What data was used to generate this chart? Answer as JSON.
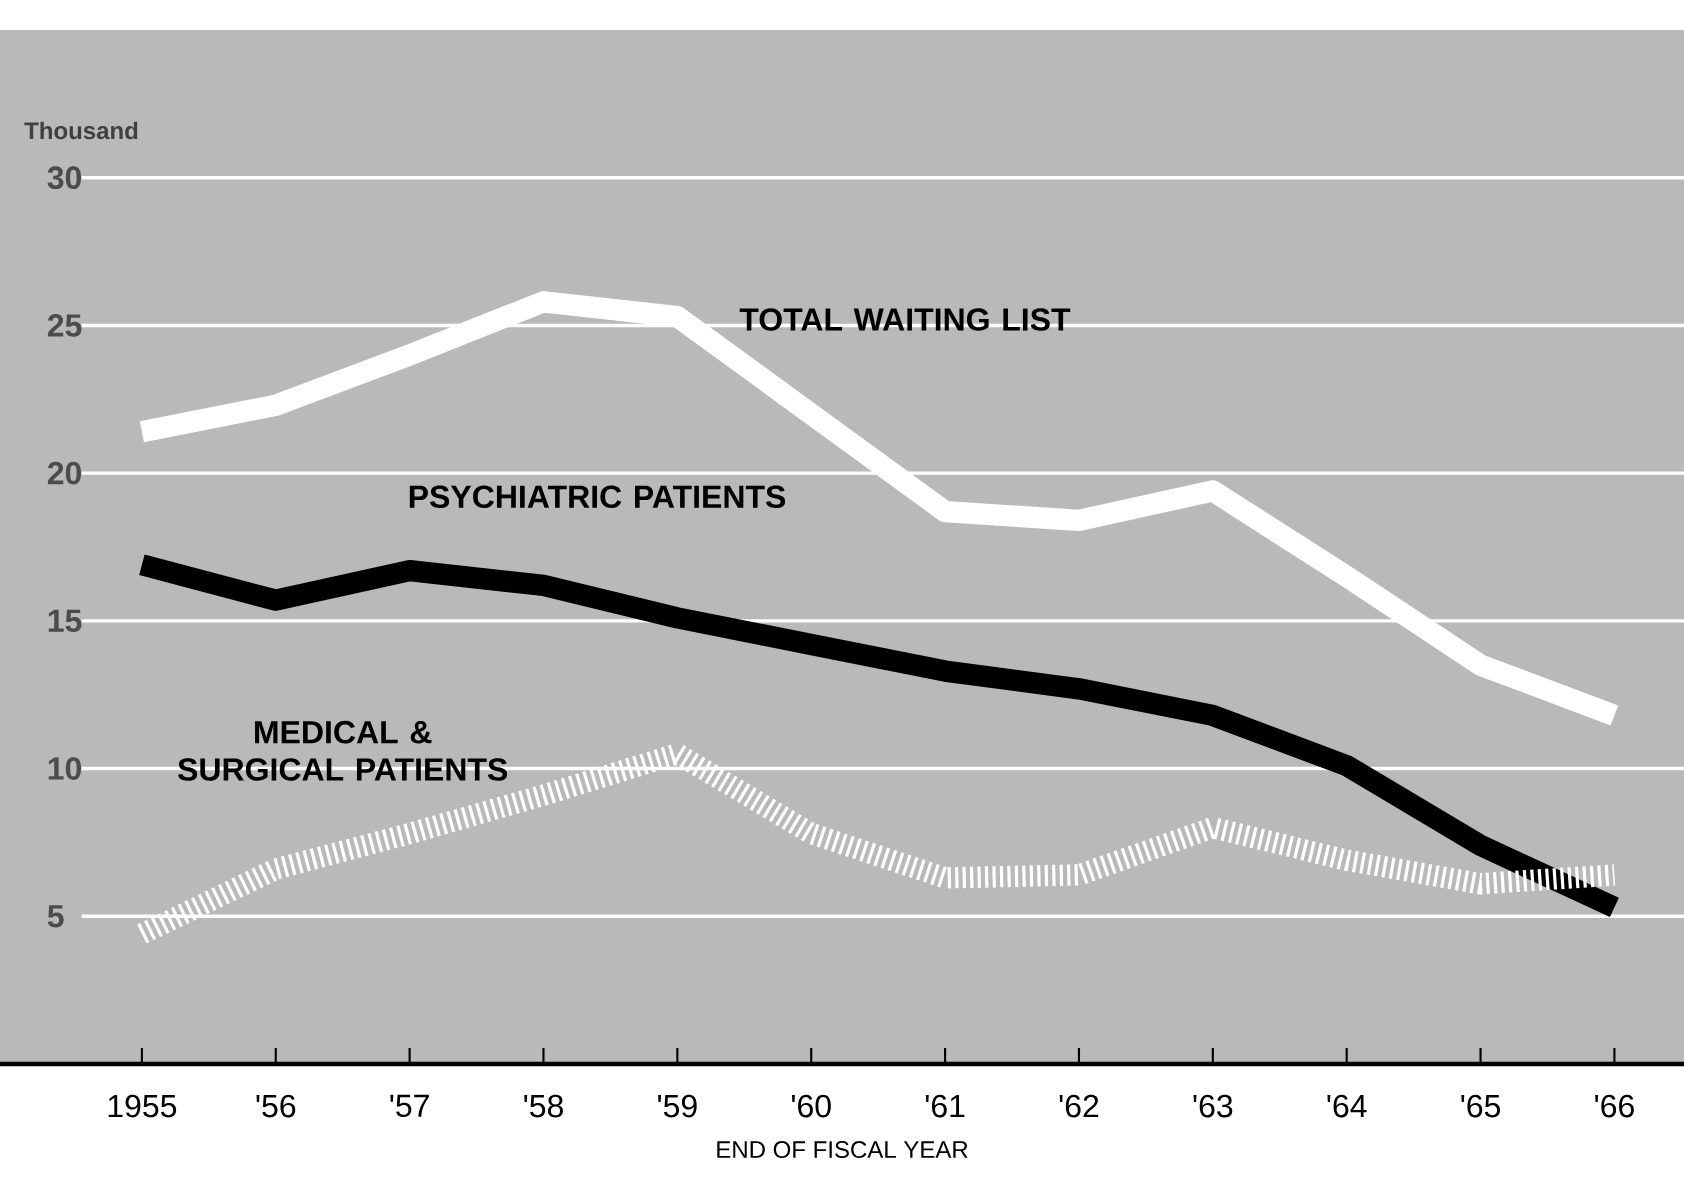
{
  "chart_data": {
    "type": "line",
    "ylabel": "Thousand",
    "xlabel": "END OF FISCAL YEAR",
    "categories": [
      "1955",
      "'56",
      "'57",
      "'58",
      "'59",
      "'60",
      "'61",
      "'62",
      "'63",
      "'64",
      "'65",
      "'66"
    ],
    "ylim": [
      0,
      35
    ],
    "yticks": [
      5,
      10,
      15,
      20,
      25,
      30
    ],
    "grid": "y",
    "marker": "none",
    "series": [
      {
        "name": "TOTAL WAITING LIST",
        "color": "#ffffff",
        "line_style": "solid",
        "values": [
          21.4,
          22.3,
          24.0,
          25.8,
          25.3,
          22.0,
          18.7,
          18.4,
          19.4,
          16.5,
          13.5,
          11.8
        ]
      },
      {
        "name": "PSYCHIATRIC PATIENTS",
        "color": "#000000",
        "line_style": "solid",
        "values": [
          16.9,
          15.7,
          16.7,
          16.2,
          15.1,
          14.2,
          13.3,
          12.7,
          11.8,
          10.1,
          7.4,
          5.3
        ]
      },
      {
        "name": "MEDICAL & SURGICAL PATIENTS",
        "color": "#ffffff",
        "line_style": "dashed",
        "values": [
          4.4,
          6.6,
          7.8,
          9.1,
          10.5,
          7.8,
          6.3,
          6.4,
          8.0,
          6.9,
          6.1,
          6.4
        ]
      }
    ]
  }
}
